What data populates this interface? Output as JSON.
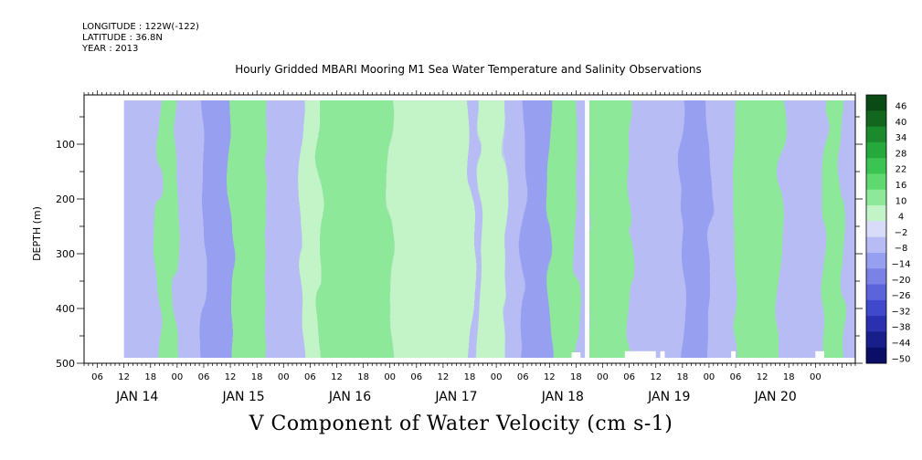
{
  "header": {
    "longitude": "LONGITUDE : 122W(-122)",
    "latitude": "LATITUDE : 36.8N",
    "year": "YEAR : 2013"
  },
  "chart_data": {
    "type": "heatmap",
    "title": "Hourly Gridded MBARI Mooring M1 Sea Water Temperature and Salinity Observations",
    "bottom_title": "V Component of Water Velocity (cm s-1)",
    "ylabel": "DEPTH (m)",
    "ylim": [
      500,
      10
    ],
    "y_ticks": [
      100,
      200,
      300,
      400,
      500
    ],
    "x_hour_ticks": [
      "06",
      "12",
      "18",
      "00",
      "06",
      "12",
      "18",
      "00",
      "06",
      "12",
      "18",
      "00",
      "06",
      "12",
      "18",
      "00",
      "06",
      "12",
      "18",
      "00",
      "06",
      "12",
      "18",
      "00",
      "06",
      "12",
      "18",
      "00"
    ],
    "x_day_labels": [
      "JAN 14",
      "JAN 15",
      "JAN 16",
      "JAN 17",
      "JAN 18",
      "JAN 19",
      "JAN 20"
    ],
    "x_range": [
      "2013-01-13T03:00",
      "2013-01-20T09:00"
    ],
    "colorbar": {
      "levels": [
        46,
        40,
        34,
        28,
        22,
        16,
        10,
        4,
        -2,
        -8,
        -14,
        -20,
        -26,
        -32,
        -38,
        -44,
        -50
      ],
      "colors": [
        "#0a4a14",
        "#12661e",
        "#1b8a2c",
        "#27a83c",
        "#3cc452",
        "#5fd86f",
        "#8ee89a",
        "#c2f4c8",
        "#d8dcf8",
        "#b7bdf4",
        "#979ff0",
        "#7a82e6",
        "#5c64dc",
        "#4048cc",
        "#2a30b0",
        "#181e8a",
        "#0a0e66"
      ]
    },
    "missing_data": [
      {
        "start": "2013-01-17T20:00",
        "end": "2013-01-17T21:00",
        "depth": [
          20,
          500
        ]
      },
      {
        "start": "2013-01-17T17:00",
        "end": "2013-01-17T19:00",
        "depth": [
          480,
          500
        ]
      },
      {
        "start": "2013-01-18T05:00",
        "end": "2013-01-18T12:00",
        "depth": [
          478,
          500
        ]
      },
      {
        "start": "2013-01-18T13:00",
        "end": "2013-01-18T14:00",
        "depth": [
          478,
          500
        ]
      },
      {
        "start": "2013-01-19T05:00",
        "end": "2013-01-19T06:00",
        "depth": [
          478,
          500
        ]
      },
      {
        "start": "2013-01-20T00:00",
        "end": "2013-01-20T02:00",
        "depth": [
          478,
          500
        ]
      }
    ],
    "field_bands": [
      {
        "start": "2013-01-13T12:00",
        "end": "2013-01-13T20:00",
        "value": -8
      },
      {
        "start": "2013-01-13T20:00",
        "end": "2013-01-14T00:00",
        "value": 10
      },
      {
        "start": "2013-01-14T00:00",
        "end": "2013-01-14T06:00",
        "value": -8
      },
      {
        "start": "2013-01-14T06:00",
        "end": "2013-01-14T12:00",
        "value": -14
      },
      {
        "start": "2013-01-14T12:00",
        "end": "2013-01-14T20:00",
        "value": 10
      },
      {
        "start": "2013-01-14T20:00",
        "end": "2013-01-15T04:00",
        "value": -8
      },
      {
        "start": "2013-01-15T04:00",
        "end": "2013-01-15T08:00",
        "value": 4
      },
      {
        "start": "2013-01-15T08:00",
        "end": "2013-01-16T00:00",
        "value": 10
      },
      {
        "start": "2013-01-16T00:00",
        "end": "2013-01-16T18:00",
        "value": 4
      },
      {
        "start": "2013-01-16T18:00",
        "end": "2013-01-16T20:00",
        "value": -8
      },
      {
        "start": "2013-01-16T20:00",
        "end": "2013-01-17T02:00",
        "value": 4
      },
      {
        "start": "2013-01-17T02:00",
        "end": "2013-01-17T06:00",
        "value": -8
      },
      {
        "start": "2013-01-17T06:00",
        "end": "2013-01-17T12:00",
        "value": -14
      },
      {
        "start": "2013-01-17T12:00",
        "end": "2013-01-17T18:00",
        "value": 10
      },
      {
        "start": "2013-01-17T18:00",
        "end": "2013-01-17T21:00",
        "value": -8
      },
      {
        "start": "2013-01-17T21:00",
        "end": "2013-01-18T06:00",
        "value": 10
      },
      {
        "start": "2013-01-18T06:00",
        "end": "2013-01-18T18:00",
        "value": -8
      },
      {
        "start": "2013-01-18T18:00",
        "end": "2013-01-19T00:00",
        "value": -14
      },
      {
        "start": "2013-01-19T00:00",
        "end": "2013-01-19T06:00",
        "value": -8
      },
      {
        "start": "2013-01-19T06:00",
        "end": "2013-01-19T16:00",
        "value": 10
      },
      {
        "start": "2013-01-19T16:00",
        "end": "2013-01-20T02:00",
        "value": -8
      },
      {
        "start": "2013-01-20T02:00",
        "end": "2013-01-20T06:00",
        "value": 10
      },
      {
        "start": "2013-01-20T06:00",
        "end": "2013-01-20T09:00",
        "value": -8
      }
    ]
  }
}
